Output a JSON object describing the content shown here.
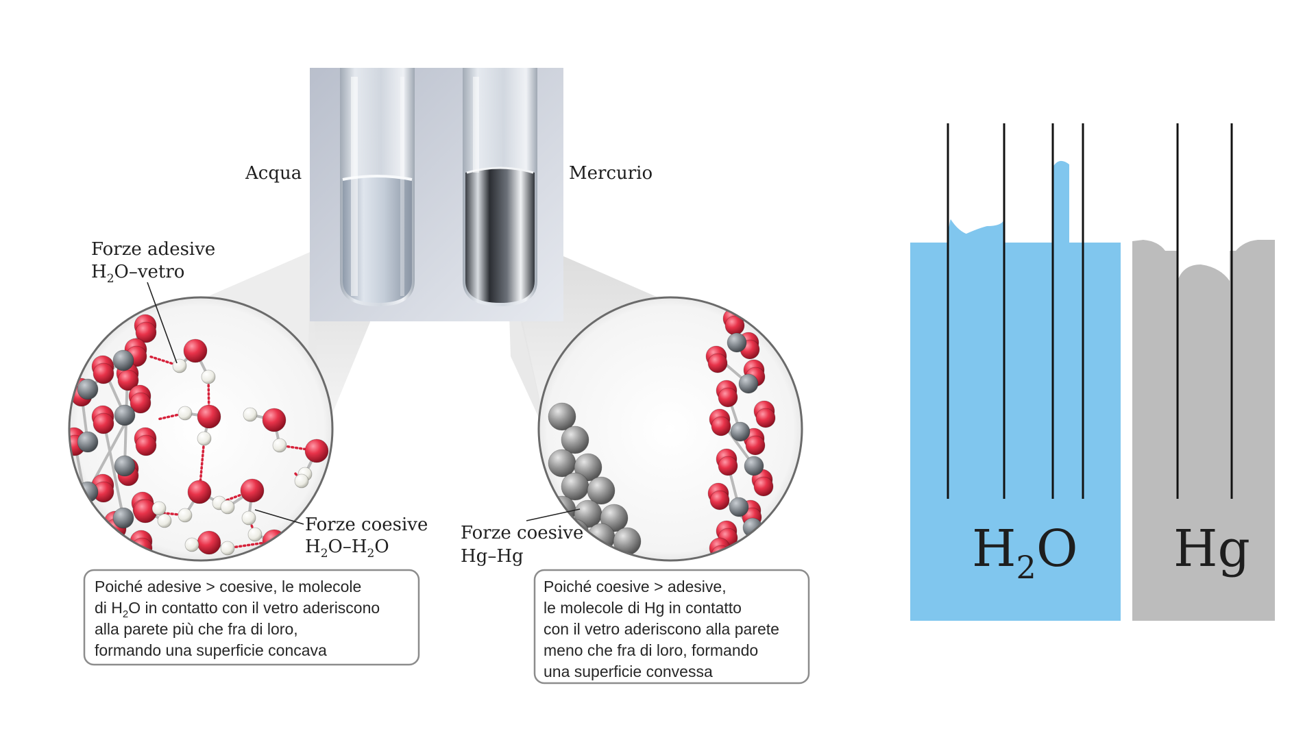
{
  "labels": {
    "water_tube": "Acqua",
    "mercury_tube": "Mercurio",
    "adhesive_title": "Forze adesive",
    "adhesive_formula_a": "H",
    "adhesive_formula_sub": "2",
    "adhesive_formula_b": "O–vetro",
    "cohesive_water_title": "Forze coesive",
    "cohesive_water_a": "H",
    "cohesive_water_sub1": "2",
    "cohesive_water_b": "O–H",
    "cohesive_water_sub2": "2",
    "cohesive_water_c": "O",
    "cohesive_hg_title": "Forze coesive",
    "cohesive_hg_formula": "Hg–Hg"
  },
  "captions": {
    "water": {
      "line1": "Poiché adesive > coesive, le molecole",
      "line2_a": "di H",
      "line2_sub": "2",
      "line2_b": "O in contatto con il vetro aderiscono",
      "line3": "alla parete più che fra di loro,",
      "line4": "formando una superficie concava"
    },
    "mercury": {
      "line1": "Poiché coesive > adesive,",
      "line2": "le molecole di Hg in contatto",
      "line3": "con il vetro aderiscono alla parete",
      "line4": "meno che fra di loro, formando",
      "line5": "una superficie convessa"
    }
  },
  "schematic": {
    "water_label_a": "H",
    "water_label_sub": "2",
    "water_label_b": "O",
    "mercury_label": "Hg"
  },
  "colors": {
    "water_fill": "#80c6ee",
    "mercury_fill": "#bcbcbc",
    "oxygen": "#e8334a",
    "hydrogen": "#f2f2ec",
    "silicon": "#8a8f94",
    "mercury_atom": "#9a9a9a",
    "bond_dots": "#d6213a",
    "caption_border": "#8c8c8c",
    "tube_line": "#111111"
  }
}
